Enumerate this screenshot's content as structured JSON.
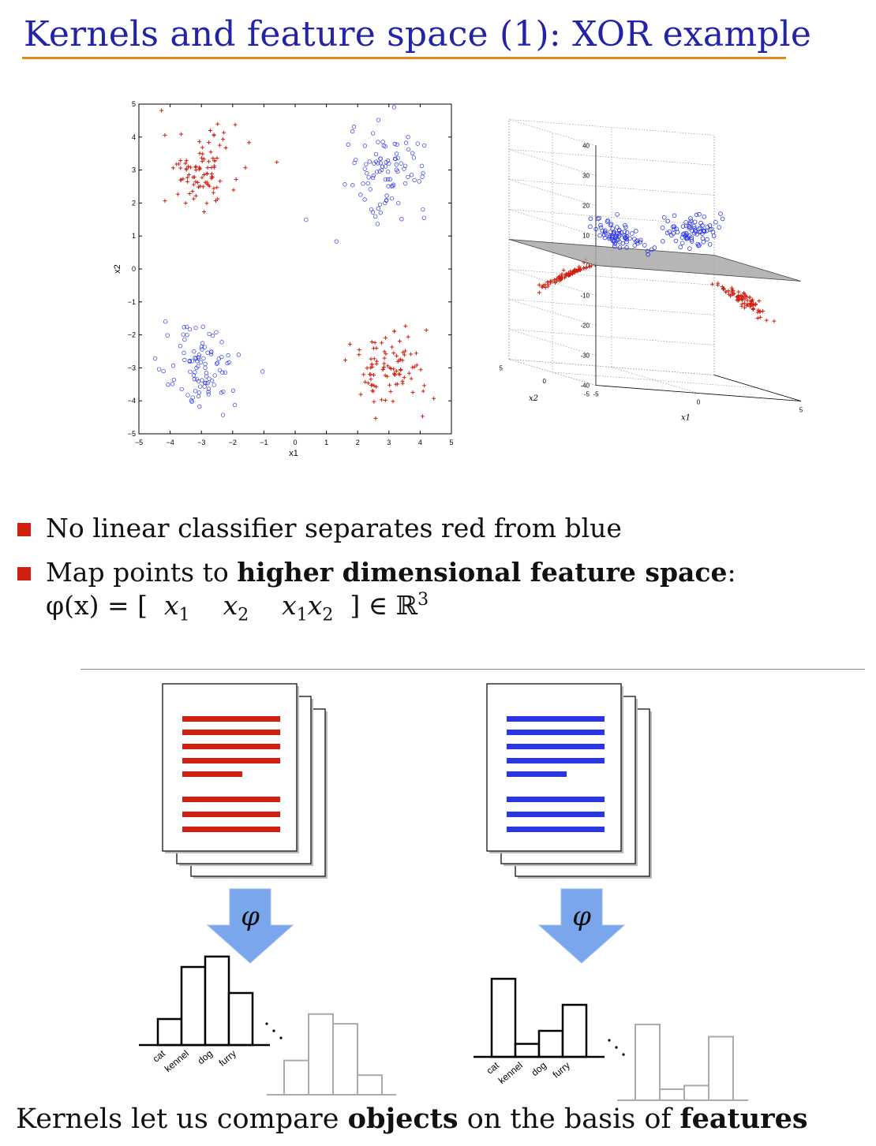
{
  "slide": {
    "title": "Kernels and feature space (1): XOR example",
    "bullets": [
      {
        "text_plain": "No linear classifier separates red from blue"
      },
      {
        "text_plain": "Map points to ",
        "text_bold": "higher dimensional feature space",
        "text_tail": ":"
      }
    ],
    "formula": {
      "lhs": "φ(x) = [",
      "x1": "x",
      "x2": "x",
      "x1x2": "x",
      "rhs": "] ∈ ℝ",
      "sub1": "1",
      "sub2": "2",
      "sup": "3"
    },
    "caption": {
      "pre": "Kernels let us compare ",
      "b1": "objects",
      "mid": " on the basis of ",
      "b2": "features"
    },
    "phi_label": "φ",
    "colors": {
      "red": "#d11f0f",
      "blue": "#2a36e6",
      "title": "#2323a8",
      "rule": "#e08a1e",
      "arrow": "#6a9de8"
    }
  },
  "chart_data": [
    {
      "type": "scatter",
      "xlabel": "x1",
      "ylabel": "x2",
      "xlim": [
        -5,
        5
      ],
      "ylim": [
        -5,
        5
      ],
      "xticks": [
        "−5",
        "−4",
        "−3",
        "−2",
        "−1",
        "0",
        "1",
        "2",
        "3",
        "4",
        "5"
      ],
      "yticks": [
        "−5",
        "−4",
        "−3",
        "−2",
        "−1",
        "0",
        "1",
        "2",
        "3",
        "4",
        "5"
      ],
      "series": [
        {
          "marker": "plus",
          "color": "#d11f0f",
          "clusters": [
            {
              "cx": -3,
              "cy": 3
            },
            {
              "cx": 3,
              "cy": -3
            }
          ]
        },
        {
          "marker": "circle",
          "color": "#2a36e6",
          "clusters": [
            {
              "cx": 3,
              "cy": 3
            },
            {
              "cx": -3,
              "cy": -3
            }
          ]
        }
      ]
    },
    {
      "type": "scatter",
      "xlabel": "x1",
      "ylabel": "x2",
      "zticks": [
        "40",
        "30",
        "20",
        "10",
        "0",
        "-10",
        "-20",
        "-30",
        "-40"
      ],
      "x2ticks": [
        "5",
        "0",
        "-5"
      ],
      "x1ticks": [
        "-5",
        "0",
        "5"
      ],
      "plane": "x1x2 = 0"
    },
    {
      "type": "bar",
      "categories": [
        "cat",
        "kennel",
        "dog",
        "furry"
      ],
      "values": [
        1,
        3,
        3.4,
        2
      ]
    },
    {
      "type": "bar",
      "categories": [
        "cat",
        "kennel",
        "dog",
        "furry"
      ],
      "values": [
        3,
        0.5,
        1,
        2
      ]
    }
  ]
}
